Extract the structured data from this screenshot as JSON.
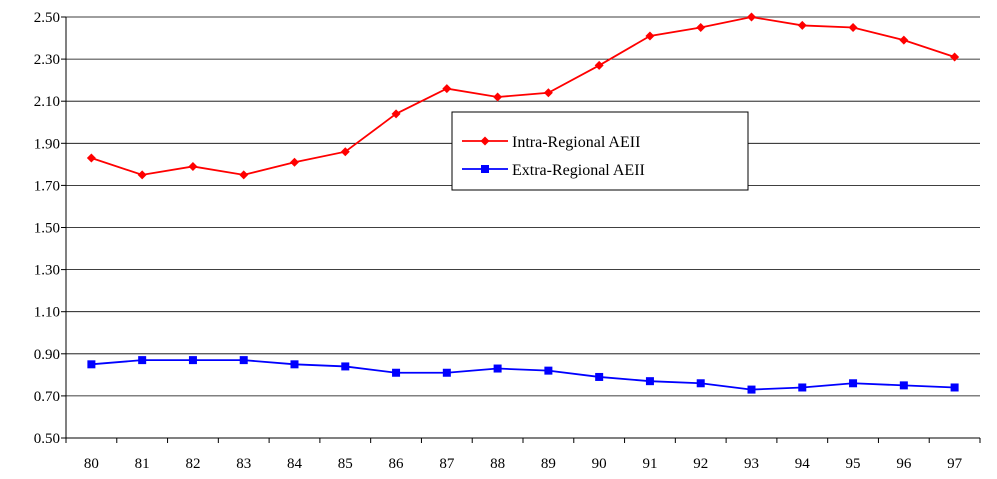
{
  "chart_data": {
    "type": "line",
    "title": "",
    "xlabel": "",
    "ylabel": "",
    "categories": [
      "80",
      "81",
      "82",
      "83",
      "84",
      "85",
      "86",
      "87",
      "88",
      "89",
      "90",
      "91",
      "92",
      "93",
      "94",
      "95",
      "96",
      "97"
    ],
    "y_ticks": [
      "0.50",
      "0.70",
      "0.90",
      "1.10",
      "1.30",
      "1.50",
      "1.70",
      "1.90",
      "2.10",
      "2.30",
      "2.50"
    ],
    "ylim": [
      0.5,
      2.5
    ],
    "grid": true,
    "legend_position": "center",
    "series": [
      {
        "name": "Intra-Regional AEII",
        "color": "#ff0000",
        "marker": "diamond",
        "values": [
          1.83,
          1.75,
          1.79,
          1.75,
          1.81,
          1.86,
          2.04,
          2.16,
          2.12,
          2.14,
          2.27,
          2.41,
          2.45,
          2.5,
          2.46,
          2.45,
          2.39,
          2.31
        ]
      },
      {
        "name": "Extra-Regional AEII",
        "color": "#0000ff",
        "marker": "square",
        "values": [
          0.85,
          0.87,
          0.87,
          0.87,
          0.85,
          0.84,
          0.81,
          0.81,
          0.83,
          0.82,
          0.79,
          0.77,
          0.76,
          0.73,
          0.74,
          0.76,
          0.75,
          0.74
        ]
      }
    ]
  }
}
